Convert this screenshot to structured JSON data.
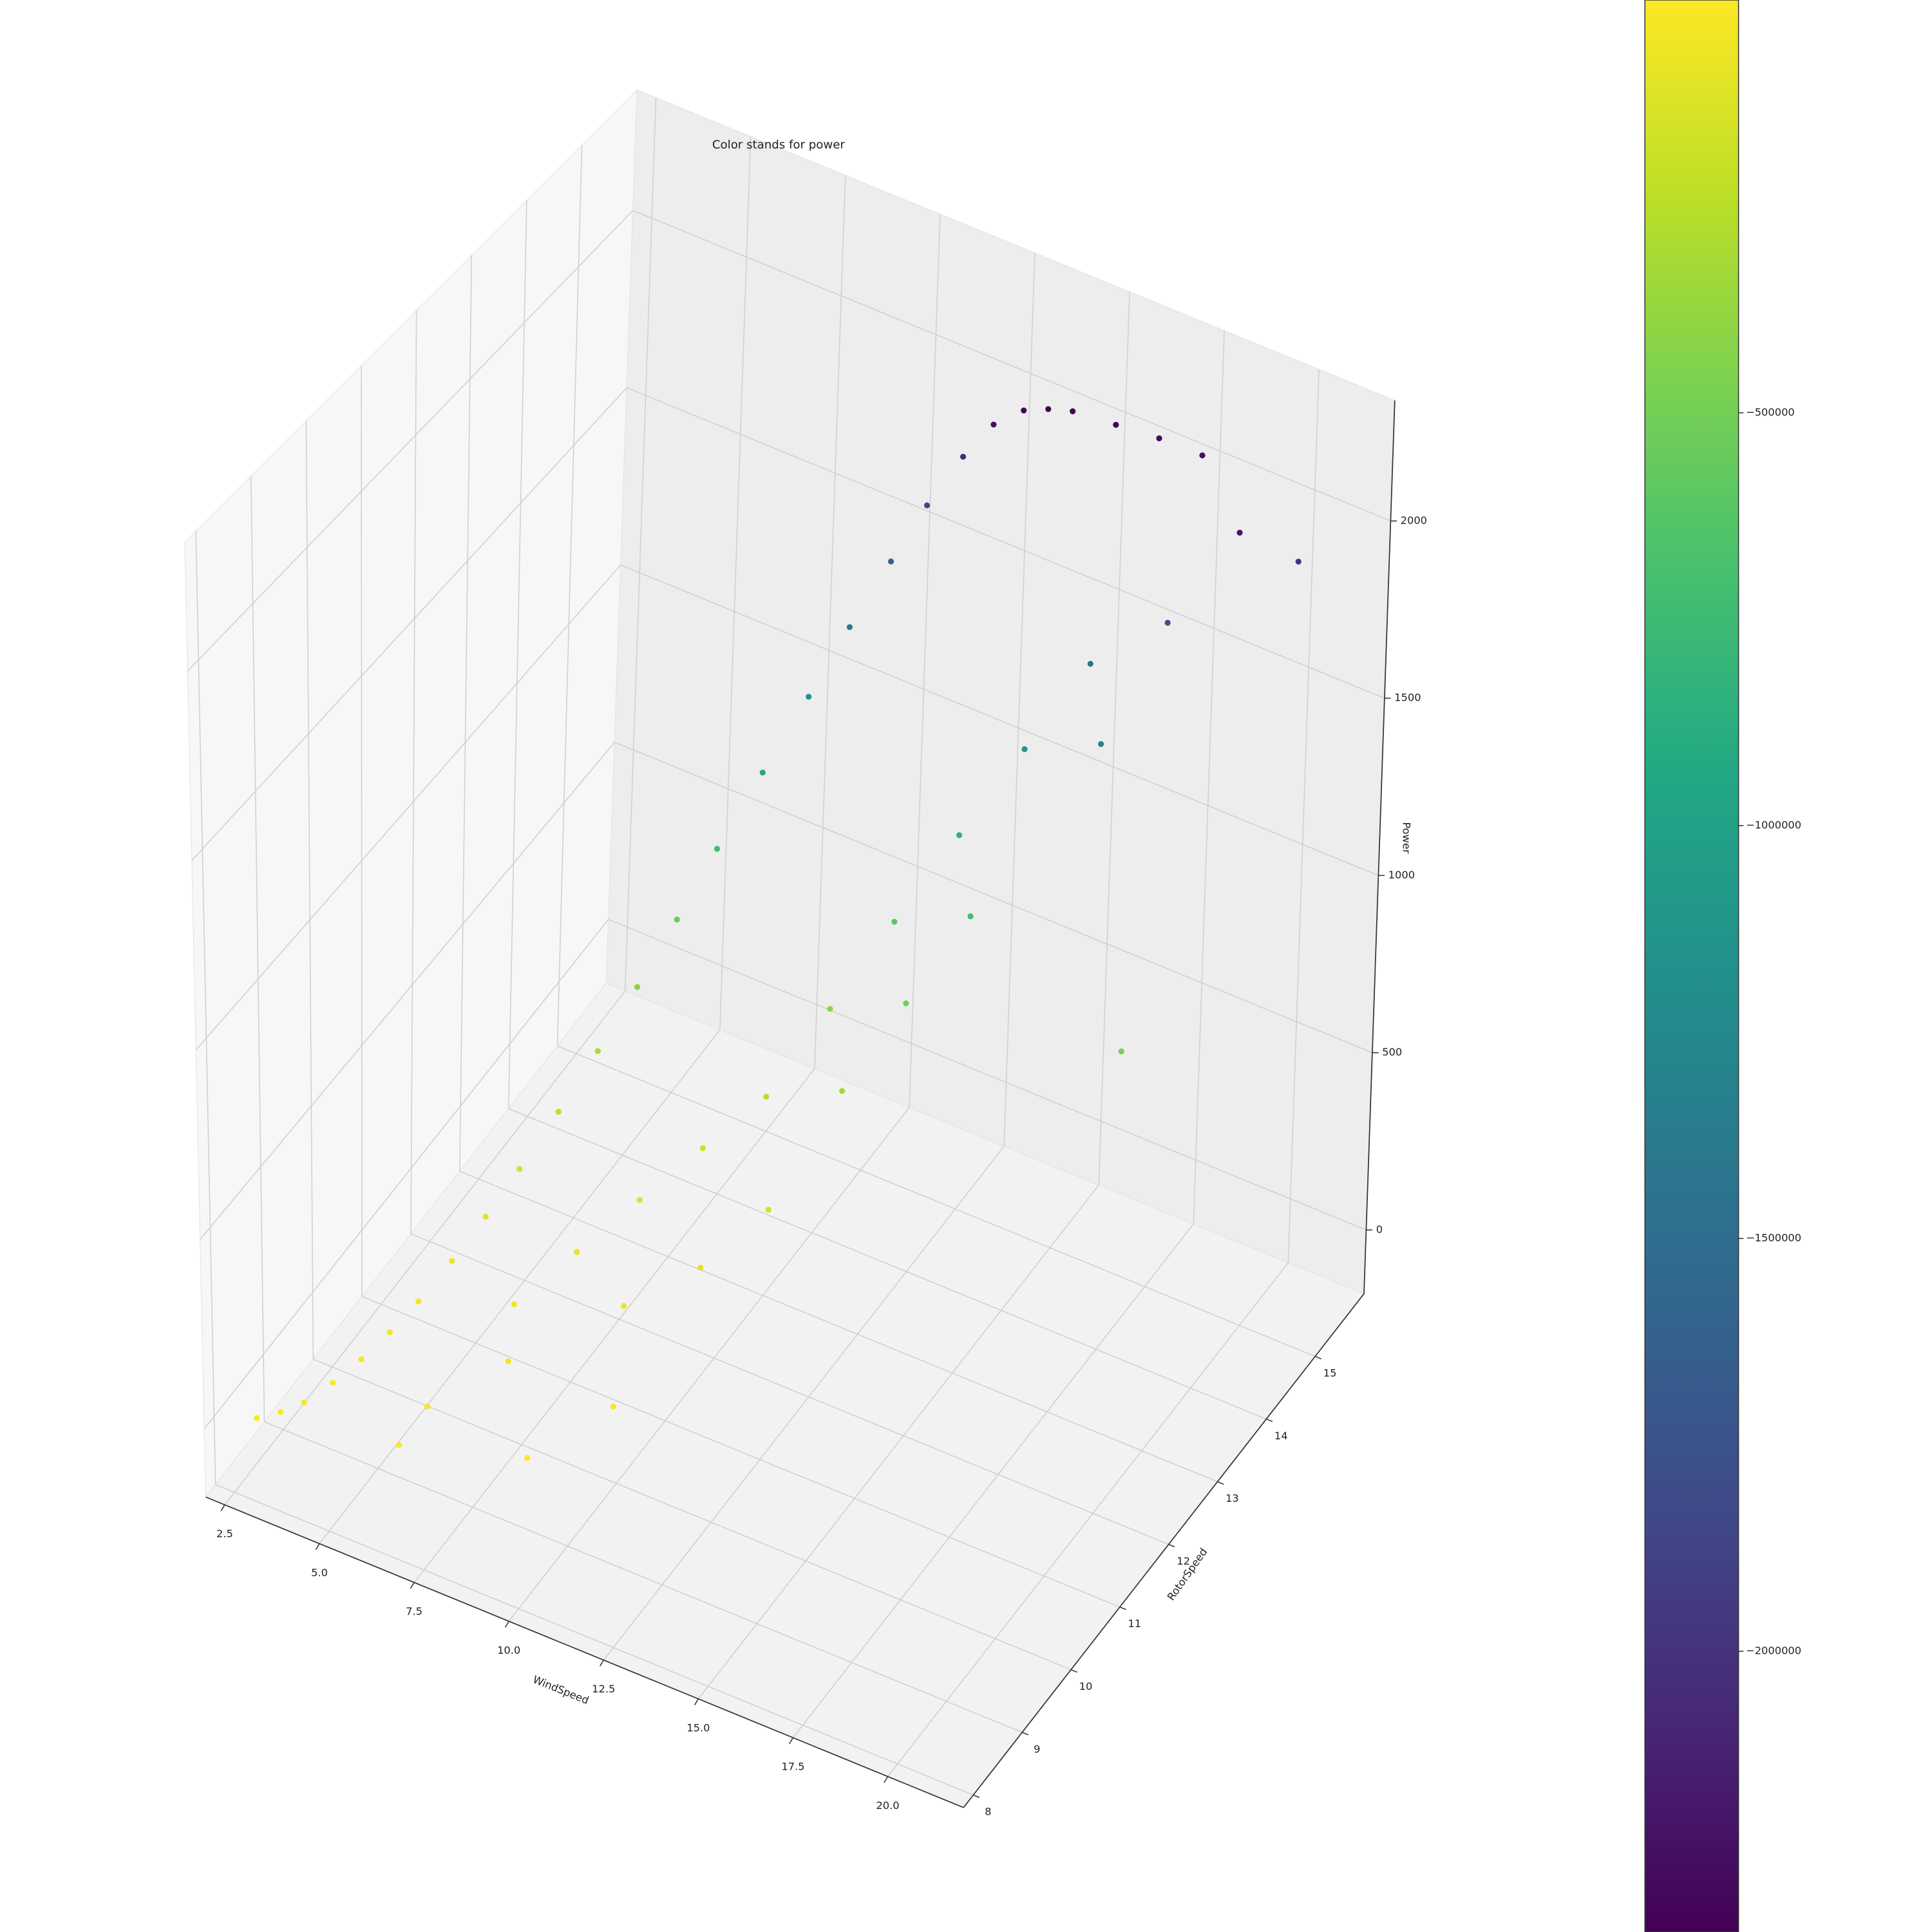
{
  "chart_data": {
    "type": "scatter3d",
    "title": "Color stands for power",
    "xlabel": "WindSpeed",
    "ylabel": "RotorSpeed",
    "zlabel": "Power",
    "colormap": "viridis",
    "x": [
      3.0,
      3.5,
      4.0,
      4.5,
      5.0,
      5.5,
      6.0,
      6.5,
      7.0,
      7.5,
      8.0,
      8.5,
      9.0,
      9.5,
      10.0,
      10.5,
      11.0,
      11.5,
      12.0,
      12.5,
      13.0,
      13.5,
      14.0,
      14.5,
      15.0,
      16.0,
      17.0,
      18.0,
      8.0,
      9.0,
      10.0,
      11.0,
      12.0,
      13.0,
      14.0,
      15.0,
      16.0,
      17.0,
      7.0,
      8.5,
      10.5,
      9.5,
      12.0,
      11.0,
      14.0,
      16.0,
      18.0,
      19.0,
      20.0,
      21.0,
      13.0,
      15.0,
      6.5,
      20.0
    ],
    "y": [
      8.1,
      8.2,
      8.3,
      8.5,
      8.7,
      8.9,
      9.1,
      9.4,
      9.7,
      10.0,
      10.4,
      10.8,
      11.2,
      11.6,
      12.0,
      12.5,
      13.0,
      13.4,
      13.8,
      14.1,
      14.4,
      14.6,
      14.8,
      14.9,
      15.0,
      15.1,
      15.2,
      15.3,
      9.5,
      10.0,
      10.5,
      11.0,
      11.5,
      12.0,
      12.5,
      13.0,
      13.5,
      14.0,
      8.5,
      9.0,
      9.8,
      8.6,
      10.2,
      9.2,
      11.5,
      12.5,
      13.5,
      14.0,
      14.6,
      15.0,
      10.8,
      12.0,
      8.3,
      12.5
    ],
    "z": [
      20,
      40,
      70,
      110,
      160,
      220,
      290,
      370,
      460,
      560,
      670,
      790,
      920,
      1060,
      1210,
      1360,
      1510,
      1660,
      1800,
      1930,
      2040,
      2120,
      2150,
      2160,
      2160,
      2150,
      2140,
      2120,
      300,
      400,
      500,
      600,
      700,
      900,
      1100,
      1300,
      1500,
      1700,
      150,
      250,
      350,
      100,
      450,
      200,
      800,
      1200,
      1600,
      1900,
      2100,
      2000,
      550,
      1000,
      60,
      1000
    ],
    "colors": [
      -200,
      -800,
      -2450,
      -6050,
      -12800,
      -24200,
      -42050,
      -68450,
      -105800,
      -156800,
      -224450,
      -312050,
      -423200,
      -561800,
      -732050,
      -924800,
      -1140050,
      -1377800,
      -1620000,
      -1862450,
      -2080800,
      -2247200,
      -2311250,
      -2332800,
      -2332800,
      -2311250,
      -2289800,
      -2247200,
      -45000,
      -80000,
      -125000,
      -180000,
      -245000,
      -405000,
      -605000,
      -845000,
      -1125000,
      -1445000,
      -11250,
      -31250,
      -61250,
      -5000,
      -101250,
      -20000,
      -320000,
      -720000,
      -1280000,
      -1805000,
      -2205000,
      -2000000,
      -151250,
      -500000,
      -1800,
      -500000
    ],
    "xlim": [
      2,
      22
    ],
    "ylim": [
      7.8,
      16
    ],
    "zlim": [
      -180,
      2340
    ],
    "clim": [
      -2340000,
      0
    ],
    "xticks": [
      2.5,
      {
        "value": 5,
        "label": "5.0"
      },
      7.5,
      {
        "value": 10,
        "label": "10.0"
      },
      12.5,
      {
        "value": 15,
        "label": "15.0"
      },
      17.5,
      {
        "value": 20,
        "label": "20.0"
      }
    ],
    "yticks": [
      8,
      9,
      10,
      11,
      12,
      13,
      14,
      15
    ],
    "zticks": [
      0,
      500,
      1000,
      1500,
      2000
    ],
    "cticks": [
      {
        "value": -500000,
        "label": "−500000"
      },
      {
        "value": -1000000,
        "label": "−1000000"
      },
      {
        "value": -1500000,
        "label": "−1500000"
      },
      {
        "value": -2000000,
        "label": "−2000000"
      }
    ],
    "grid": true
  }
}
